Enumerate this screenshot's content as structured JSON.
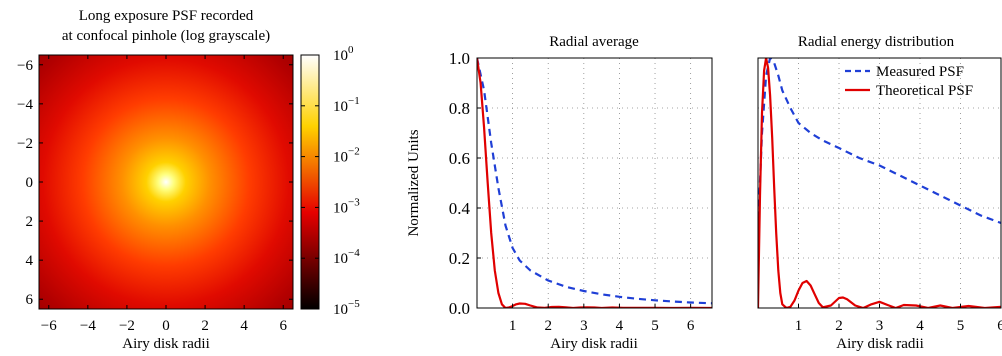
{
  "chart_data": [
    {
      "type": "heatmap",
      "title": [
        "Long exposure PSF recorded",
        "at confocal pinhole (log grayscale)"
      ],
      "xlabel": "Airy disk radii",
      "ylabel": "",
      "xlim": [
        -6.5,
        6.5
      ],
      "ylim": [
        -6.5,
        6.5
      ],
      "xticks": [
        -6,
        -4,
        -2,
        0,
        2,
        4,
        6
      ],
      "yticks": [
        -6,
        -4,
        -2,
        0,
        2,
        4,
        6
      ],
      "x_tick_labels": [
        "−6",
        "−4",
        "−2",
        "0",
        "2",
        "4",
        "6"
      ],
      "y_tick_labels": [
        "−6",
        "−4",
        "−2",
        "0",
        "2",
        "4",
        "6"
      ],
      "center": [
        0,
        0
      ],
      "colormap": "hot",
      "colorbar": {
        "scale": "log",
        "range": [
          1e-05,
          1
        ],
        "ticks": [
          {
            "base": "10",
            "exp": "0"
          },
          {
            "base": "10",
            "exp": "−1"
          },
          {
            "base": "10",
            "exp": "−2"
          },
          {
            "base": "10",
            "exp": "−3"
          },
          {
            "base": "10",
            "exp": "−4"
          },
          {
            "base": "10",
            "exp": "−5"
          }
        ]
      }
    },
    {
      "type": "line",
      "title": "Radial average",
      "xlabel": "Airy disk radii",
      "ylabel": "Normalized Units",
      "xlim": [
        0,
        6.6
      ],
      "ylim": [
        0,
        1
      ],
      "xticks": [
        1,
        2,
        3,
        4,
        5,
        6
      ],
      "yticks": [
        0,
        0.2,
        0.4,
        0.6,
        0.8,
        1.0
      ],
      "y_tick_labels": [
        "0.0",
        "0.2",
        "0.4",
        "0.6",
        "0.8",
        "1.0"
      ],
      "grid": true,
      "series": [
        {
          "color": "#1f3fd6",
          "style": "dashed",
          "x": [
            0,
            0.2,
            0.4,
            0.6,
            0.8,
            1.0,
            1.2,
            1.5,
            2.0,
            2.5,
            3.0,
            3.5,
            4.0,
            4.5,
            5.0,
            5.5,
            6.0,
            6.6
          ],
          "y": [
            1.0,
            0.87,
            0.66,
            0.48,
            0.33,
            0.24,
            0.19,
            0.15,
            0.11,
            0.085,
            0.068,
            0.055,
            0.045,
            0.037,
            0.031,
            0.026,
            0.022,
            0.019
          ]
        },
        {
          "color": "#e00000",
          "style": "solid",
          "x": [
            0,
            0.1,
            0.2,
            0.3,
            0.4,
            0.5,
            0.6,
            0.7,
            0.8,
            0.9,
            1.0,
            1.1,
            1.2,
            1.35,
            1.5,
            1.7,
            1.9,
            2.1,
            2.3,
            2.5,
            2.7,
            2.9,
            3.1,
            3.3,
            3.5,
            3.8,
            4.1,
            4.5,
            5.0,
            5.5,
            6.0,
            6.6
          ],
          "y": [
            1.0,
            0.9,
            0.72,
            0.5,
            0.3,
            0.15,
            0.06,
            0.015,
            0.0,
            0.002,
            0.008,
            0.015,
            0.018,
            0.017,
            0.01,
            0.002,
            0.001,
            0.004,
            0.005,
            0.003,
            0.0,
            0.002,
            0.003,
            0.002,
            0.0,
            0.002,
            0.001,
            0.001,
            0.001,
            0.0,
            0.001,
            0.0
          ]
        }
      ]
    },
    {
      "type": "line",
      "title": "Radial energy distribution",
      "xlabel": "Airy disk radii",
      "ylabel": "",
      "xlim": [
        0,
        6.0
      ],
      "ylim": [
        0,
        1
      ],
      "xticks": [
        1,
        2,
        3,
        4,
        5,
        6
      ],
      "grid": true,
      "legend": "top-right",
      "series": [
        {
          "name": "Measured PSF",
          "color": "#1f3fd6",
          "style": "dashed",
          "x": [
            0,
            0.1,
            0.2,
            0.3,
            0.4,
            0.5,
            0.6,
            0.8,
            1.0,
            1.3,
            1.6,
            2.0,
            2.5,
            3.0,
            3.5,
            4.0,
            4.5,
            5.0,
            5.5,
            6.0
          ],
          "y": [
            0.31,
            0.7,
            0.93,
            1.0,
            0.98,
            0.93,
            0.87,
            0.8,
            0.74,
            0.7,
            0.67,
            0.64,
            0.6,
            0.57,
            0.53,
            0.49,
            0.45,
            0.41,
            0.37,
            0.34
          ]
        },
        {
          "name": "Theoretical PSF",
          "color": "#e00000",
          "style": "solid",
          "x": [
            0,
            0.05,
            0.1,
            0.15,
            0.2,
            0.25,
            0.3,
            0.35,
            0.4,
            0.45,
            0.5,
            0.55,
            0.6,
            0.7,
            0.8,
            0.9,
            1.0,
            1.1,
            1.2,
            1.3,
            1.4,
            1.5,
            1.6,
            1.8,
            2.0,
            2.1,
            2.2,
            2.4,
            2.6,
            2.8,
            3.0,
            3.2,
            3.4,
            3.6,
            3.9,
            4.2,
            4.5,
            4.8,
            5.2,
            5.6,
            6.0
          ],
          "y": [
            0.0,
            0.45,
            0.78,
            0.95,
            1.0,
            0.96,
            0.85,
            0.68,
            0.48,
            0.3,
            0.15,
            0.06,
            0.015,
            0.0,
            0.005,
            0.03,
            0.07,
            0.1,
            0.108,
            0.09,
            0.055,
            0.02,
            0.003,
            0.01,
            0.04,
            0.042,
            0.035,
            0.01,
            0.0,
            0.015,
            0.025,
            0.012,
            0.0,
            0.012,
            0.01,
            0.0,
            0.01,
            0.0,
            0.008,
            0.0,
            0.005
          ]
        }
      ]
    }
  ]
}
